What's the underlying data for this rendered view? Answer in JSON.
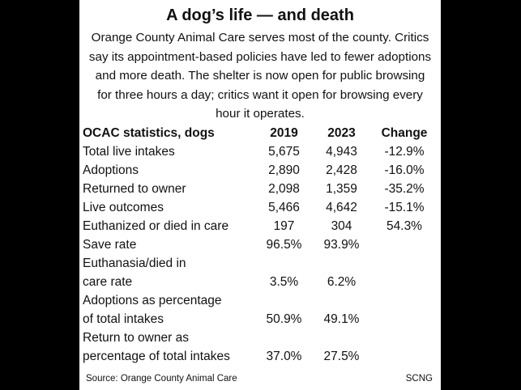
{
  "title": "A dog’s life — and death",
  "subtitle": "Orange County Animal Care serves most of the county. Critics say its appointment-based policies have led to fewer adoptions and more death. The shelter is now open for public browsing for three hours a day; critics want it open for browsing every hour it operates.",
  "source": "Source: Orange County Animal Care",
  "credit": "SCNG",
  "chart_data": {
    "type": "table",
    "columns": [
      "OCAC statistics, dogs",
      "2019",
      "2023",
      "Change"
    ],
    "rows": [
      {
        "label": [
          "Total live intakes"
        ],
        "values": [
          "5,675",
          "4,943",
          "-12.9%"
        ]
      },
      {
        "label": [
          "Adoptions"
        ],
        "values": [
          "2,890",
          "2,428",
          "-16.0%"
        ]
      },
      {
        "label": [
          "Returned to owner"
        ],
        "values": [
          "2,098",
          "1,359",
          "-35.2%"
        ]
      },
      {
        "label": [
          "Live outcomes"
        ],
        "values": [
          "5,466",
          "4,642",
          "-15.1%"
        ]
      },
      {
        "label": [
          "Euthanized or died in care"
        ],
        "values": [
          "197",
          "304",
          "54.3%"
        ]
      },
      {
        "label": [
          "Save rate"
        ],
        "values": [
          "96.5%",
          "93.9%",
          ""
        ]
      },
      {
        "label": [
          "Euthanasia/died in",
          "care rate"
        ],
        "values": [
          "3.5%",
          "6.2%",
          ""
        ]
      },
      {
        "label": [
          "Adoptions as percentage",
          "of total intakes"
        ],
        "values": [
          "50.9%",
          "49.1%",
          ""
        ]
      },
      {
        "label": [
          "Return to owner as",
          "percentage of total intakes"
        ],
        "values": [
          "37.0%",
          "27.5%",
          ""
        ]
      }
    ]
  }
}
